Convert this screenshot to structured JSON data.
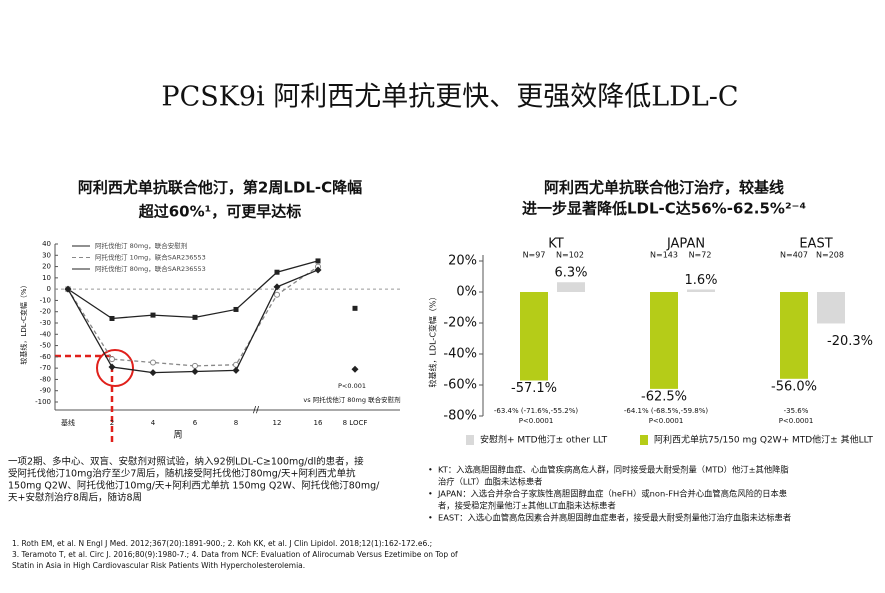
{
  "page_title": "PCSK9i 阿利西尤单抗更快、更强效降低LDL-C",
  "chart_data": [
    {
      "type": "line",
      "title": [
        "阿利西尤单抗联合他汀，第2周LDL-C降幅",
        "超过60%¹，可更早达标"
      ],
      "x_label": "周",
      "y_label": "较基线，LDL-C变幅（%）",
      "categories": [
        "基线",
        "2",
        "4",
        "6",
        "8",
        "12",
        "16",
        "8 LOCF"
      ],
      "series": [
        {
          "name": "阿托伐他汀 80mg，联合安慰剂",
          "color": "#222222",
          "dashed": false,
          "marker": "square",
          "values": [
            0,
            -26,
            -23,
            -25,
            -18,
            15,
            25,
            -17
          ]
        },
        {
          "name": "阿托伐他汀 10mg，联合SAR236553",
          "color": "#888888",
          "dashed": true,
          "marker": "circle",
          "values": [
            0,
            -62,
            -65,
            -68,
            -67,
            -5,
            20,
            null
          ]
        },
        {
          "name": "阿托伐他汀 80mg，联合SAR236553",
          "color": "#222222",
          "dashed": false,
          "marker": "diamond",
          "values": [
            0,
            -69,
            -74,
            -73,
            -72,
            2,
            17,
            -71
          ]
        }
      ],
      "ylim": [
        -100,
        40
      ],
      "yticks": [
        40,
        30,
        20,
        10,
        0,
        -10,
        -20,
        -30,
        -40,
        -50,
        -60,
        -70,
        -80,
        -90,
        -100
      ],
      "annotations": [
        "P<0.001",
        "vs 阿托伐他汀 80mg 联合安慰剂"
      ],
      "note": [
        "一项2期、多中心、双盲、安慰剂对照试验，纳入92例LDL-C≥100mg/dl的患者，接",
        "受阿托伐他汀10mg治疗至少7周后，随机接受阿托伐他汀80mg/天+阿利西尤单抗",
        "150mg Q2W、阿托伐他汀10mg/天+阿利西尤单抗 150mg Q2W、阿托伐他汀80mg/",
        "天+安慰剂治疗8周后，随访8周"
      ]
    },
    {
      "type": "bar",
      "title": [
        "阿利西尤单抗联合他汀治疗，较基线",
        "进一步显著降低LDL-C达56%-62.5%²⁻⁴"
      ],
      "y_label": "较基线，LDL-C变幅（%）",
      "categories": [
        "KT",
        "JAPAN",
        "EAST"
      ],
      "n_labels": [
        [
          "N=97",
          "N=102"
        ],
        [
          "N=143",
          "N=72"
        ],
        [
          "N=407",
          "N=208"
        ]
      ],
      "series": [
        {
          "name": "阿利西尤单抗75/150 mg Q2W+ MTD他汀± 其他LLT",
          "color": "#b5cc18",
          "values": [
            -57.1,
            -62.5,
            -56.0
          ],
          "value_labels": [
            "-57.1%",
            "-62.5%",
            "-56.0%"
          ]
        },
        {
          "name": "安慰剂+ MTD他汀± other LLT",
          "color": "#d9d9d9",
          "values": [
            6.3,
            1.6,
            -20.3
          ],
          "value_labels": [
            "6.3%",
            "1.6%",
            "-20.3%"
          ]
        }
      ],
      "annotations": [
        [
          "-63.4% (-71.6%,-55.2%)",
          "P<0.0001"
        ],
        [
          "-64.1% (-68.5%,-59.8%)",
          "P<0.0001"
        ],
        [
          "-35.6%",
          "P<0.0001"
        ]
      ],
      "ylim": [
        -80,
        20
      ],
      "yticks": [
        {
          "value": 20,
          "label": "20%"
        },
        {
          "value": 0,
          "label": "0%"
        },
        {
          "value": -20,
          "label": "-20%"
        },
        {
          "value": -40,
          "label": "-40%"
        },
        {
          "value": -60,
          "label": "-60%"
        },
        {
          "value": -80,
          "label": "-80%"
        }
      ],
      "bullets": [
        [
          "KT：入选高胆固醇血症、心血管疾病高危人群，同时接受最大耐受剂量（MTD）他汀±其他降脂",
          "治疗（LLT）血脂未达标患者"
        ],
        [
          "JAPAN：入选合并杂合子家族性高胆固醇血症（heFH）或non-FH合并心血管高危风险的日本患",
          "者，接受稳定剂量他汀±其他LLT血脂未达标患者"
        ],
        [
          "EAST：入选心血管高危因素合并高胆固醇血症患者，接受最大耐受剂量他汀治疗血脂未达标患者"
        ]
      ]
    }
  ],
  "references": [
    "1. Roth EM, et al. N Engl J Med. 2012;367(20):1891-900.; 2. Koh KK, et al. J Clin Lipidol. 2018;12(1):162-172.e6.;",
    "3. Teramoto T, et al. Circ J. 2016;80(9):1980-7.; 4. Data from NCF: Evaluation of Alirocumab Versus Ezetimibe on Top of",
    "Statin in Asia in High Cardiovascular Risk Patients With Hypercholesterolemia."
  ]
}
